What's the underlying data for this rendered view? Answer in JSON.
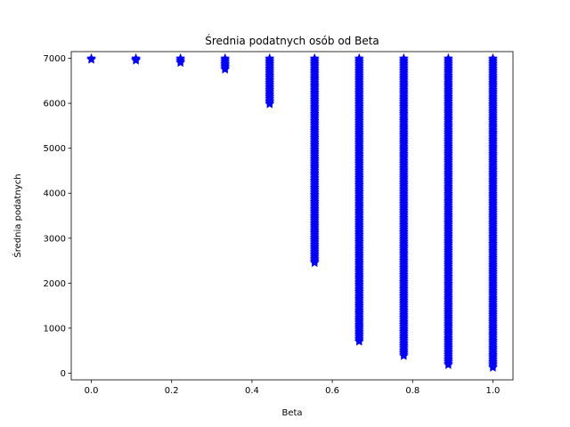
{
  "chart_data": {
    "type": "scatter",
    "title": "Średnia podatnych osób od Beta",
    "xlabel": "Beta",
    "ylabel": "Średnia podatnych",
    "xlim": [
      -0.05,
      1.05
    ],
    "ylim": [
      -150,
      7150
    ],
    "x_ticks": [
      0.0,
      0.2,
      0.4,
      0.6,
      0.8,
      1.0
    ],
    "x_tick_labels": [
      "0.0",
      "0.2",
      "0.4",
      "0.6",
      "0.8",
      "1.0"
    ],
    "y_ticks": [
      0,
      1000,
      2000,
      3000,
      4000,
      5000,
      6000,
      7000
    ],
    "y_tick_labels": [
      "0",
      "1000",
      "2000",
      "3000",
      "4000",
      "5000",
      "6000",
      "7000"
    ],
    "grid": false,
    "marker": "star",
    "color": "#0000ff",
    "series": [
      {
        "x": [
          0.0,
          0.111,
          0.222,
          0.333,
          0.444,
          0.556,
          0.667,
          0.778,
          0.889,
          1.0
        ],
        "y_min": [
          6970,
          6950,
          6900,
          6750,
          5980,
          2450,
          700,
          380,
          180,
          120
        ],
        "y_max": [
          7000,
          7000,
          7000,
          7000,
          7000,
          7000,
          7000,
          7000,
          7000,
          7000
        ]
      }
    ]
  }
}
